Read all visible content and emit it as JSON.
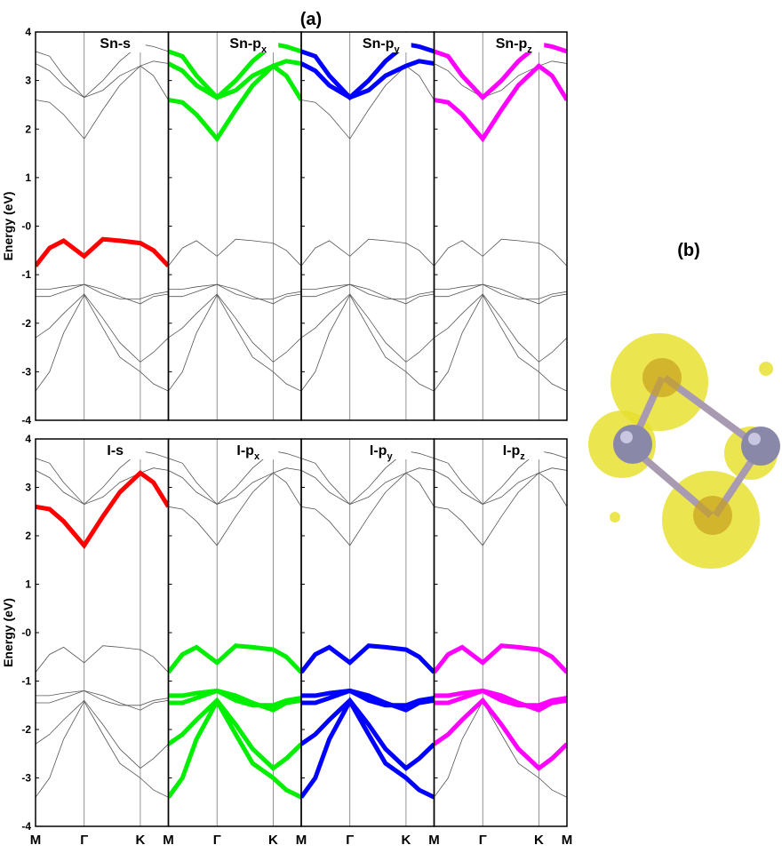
{
  "chart_data": {
    "type": "band-structure",
    "title": "(a)",
    "ylabel": "Energy (eV)",
    "x": [
      0,
      0.25,
      0.5,
      0.866,
      1.2,
      1.5,
      1.866,
      2.1,
      2.366
    ],
    "xlim": [
      0,
      2.366
    ],
    "xticks": [
      {
        "value": 0,
        "label": "M"
      },
      {
        "value": 0.866,
        "label": "Γ"
      },
      {
        "value": 1.866,
        "label": "K"
      },
      {
        "value": 2.366,
        "label": "M"
      }
    ],
    "ylim": [
      -4,
      4
    ],
    "yticks": [
      -4,
      -3,
      -2,
      -1,
      {
        "value": 0,
        "label": "-0"
      },
      1,
      2,
      3,
      4
    ],
    "bands": [
      [
        -3.4,
        -3.0,
        -2.2,
        -1.42,
        -2.1,
        -2.7,
        -3.0,
        -3.25,
        -3.4
      ],
      [
        -2.3,
        -2.1,
        -1.8,
        -1.4,
        -1.9,
        -2.4,
        -2.8,
        -2.6,
        -2.3
      ],
      [
        -1.45,
        -1.45,
        -1.35,
        -1.2,
        -1.3,
        -1.45,
        -1.6,
        -1.45,
        -1.4
      ],
      [
        -1.3,
        -1.3,
        -1.25,
        -1.2,
        -1.4,
        -1.5,
        -1.5,
        -1.4,
        -1.35
      ],
      [
        -0.82,
        -0.45,
        -0.3,
        -0.62,
        -0.27,
        -0.3,
        -0.35,
        -0.5,
        -0.82
      ],
      [
        2.6,
        2.55,
        2.3,
        1.8,
        2.4,
        2.9,
        3.3,
        3.1,
        2.6
      ],
      [
        3.35,
        3.2,
        2.9,
        2.65,
        2.8,
        3.1,
        3.3,
        3.4,
        3.35
      ],
      [
        3.6,
        3.5,
        3.1,
        2.65,
        3.0,
        3.4,
        3.75,
        3.7,
        3.6
      ]
    ],
    "panels": [
      {
        "label": "Sn-s",
        "color": "#ff0000",
        "highlighted_bands": [
          4
        ]
      },
      {
        "label": "Sn-p",
        "sub": "x",
        "color": "#00ee00",
        "highlighted_bands": [
          5,
          6,
          7
        ]
      },
      {
        "label": "Sn-p",
        "sub": "y",
        "color": "#0000ff",
        "highlighted_bands": [
          6,
          7
        ]
      },
      {
        "label": "Sn-p",
        "sub": "z",
        "color": "#ff00ff",
        "highlighted_bands": [
          5,
          7
        ]
      },
      {
        "label": "I-s",
        "color": "#ff0000",
        "highlighted_bands": [
          5
        ]
      },
      {
        "label": "I-p",
        "sub": "x",
        "color": "#00ee00",
        "highlighted_bands": [
          4,
          0,
          1,
          2,
          3
        ]
      },
      {
        "label": "I-p",
        "sub": "y",
        "color": "#0000ff",
        "highlighted_bands": [
          4,
          0,
          1,
          2,
          3
        ]
      },
      {
        "label": "I-p",
        "sub": "z",
        "color": "#ff00ff",
        "highlighted_bands": [
          4,
          1,
          2,
          3
        ]
      }
    ],
    "image_label": "(b)"
  }
}
